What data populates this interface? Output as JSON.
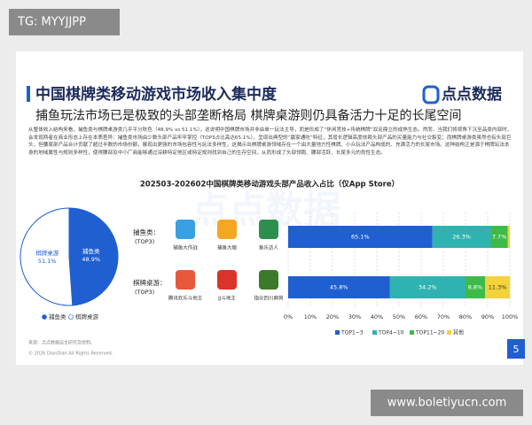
{
  "header": {
    "tag": "TG: MYYJJPP",
    "site": "www.boletiyucn.com"
  },
  "slide": {
    "title": "中国棋牌类移动游戏市场收入集中度",
    "logo": "点点数据",
    "subtitle": "捕鱼玩法市场已是极致的头部垄断格局 棋牌桌游则仍具备活力十足的长尾空间",
    "body": "从整体收入结构来看，捕鱼类与棋牌桌游类几乎平分秋色（48.9% vs 51.1%），这说明中国棋牌市场并非由单一玩法主导，而是形成了“休闲竞技+传统棋牌”双足鼎立的成熟生态。然而，当我们将视角下沉至品类内部时，会发现两者在商业形态上存在本质差异：捕鱼类市场由少数头部产品牢牢掌控（TOP3占比高达65.1%），呈现出典型的“赢家通吃”特征，其增长逻辑高度依赖头部产品的买量能力与社交裂变；而棋牌桌游类虽然也有头部巨头，但腰尾部产品合计贡献了超过半数的市场份额，展现出更强的市场包容性与玩法多样性。这揭示出棋牌桌游领域存在一个由大量地方性棋牌、小众玩法产品构成的、充满活力的长尾市场。这种结构正是源于棋牌玩法本身的地域属性与规则多样性，使得腰部及中小厂商能够通过深耕特定地区或特定规则找到自己的生存空间，从而形成了头部领跑、腰部活跃、长尾多元的良性生态。",
    "chart_title": "202503-202602中国棋牌类移动游戏头部产品收入占比（仅App Store）",
    "source": "来源：点点数据自主研究及绘制。",
    "copyright": "© 2026 DianDian All Rights Reserved.",
    "page": "5"
  },
  "chart_data": [
    {
      "type": "pie",
      "categories": [
        "捕鱼类",
        "棋牌桌游"
      ],
      "values": [
        48.9,
        51.1
      ],
      "value_labels": [
        "48.9%",
        "51.1%"
      ],
      "colors": [
        "#1f5fd1",
        "#ffffff"
      ]
    },
    {
      "type": "stacked-bar",
      "categories": [
        "捕鱼类：",
        "棋牌桌游："
      ],
      "subcategories": [
        "(TOP3)",
        "(TOP3)"
      ],
      "games": [
        [
          "捕鱼大作战",
          "捕鱼大咖",
          "鱼乐达人"
        ],
        [
          "腾讯欢乐斗地主",
          "JJ斗地主",
          "指尖四川麻将"
        ]
      ],
      "series": [
        {
          "name": "TOP1~3",
          "color": "#1f5fd1",
          "values": [
            65.1,
            45.8
          ],
          "value_labels": [
            "65.1%",
            "45.8%"
          ]
        },
        {
          "name": "TOP4~10",
          "color": "#2fb3b0",
          "values": [
            26.3,
            34.2
          ],
          "value_labels": [
            "26.3%",
            "34.2%"
          ]
        },
        {
          "name": "TOP11~20",
          "color": "#3dbb4a",
          "values": [
            7.7,
            8.8
          ],
          "value_labels": [
            "7.7%",
            "8.8%"
          ]
        },
        {
          "name": "其他",
          "color": "#f3d23a",
          "values": [
            0.9,
            11.3
          ],
          "value_labels": [
            null,
            "11.3%"
          ]
        }
      ],
      "xlim": [
        0,
        100
      ],
      "xticks": [
        {
          "value": 0,
          "label": "0%"
        },
        {
          "value": 10,
          "label": "10%"
        },
        {
          "value": 20,
          "label": "20%"
        },
        {
          "value": 30,
          "label": "30%"
        },
        {
          "value": 40,
          "label": "40%"
        },
        {
          "value": 50,
          "label": "50%"
        },
        {
          "value": 60,
          "label": "60%"
        },
        {
          "value": 70,
          "label": "70%"
        },
        {
          "value": 80,
          "label": "80%"
        },
        {
          "value": 90,
          "label": "90%"
        },
        {
          "value": 100,
          "label": "100%"
        }
      ],
      "grid": true
    }
  ]
}
